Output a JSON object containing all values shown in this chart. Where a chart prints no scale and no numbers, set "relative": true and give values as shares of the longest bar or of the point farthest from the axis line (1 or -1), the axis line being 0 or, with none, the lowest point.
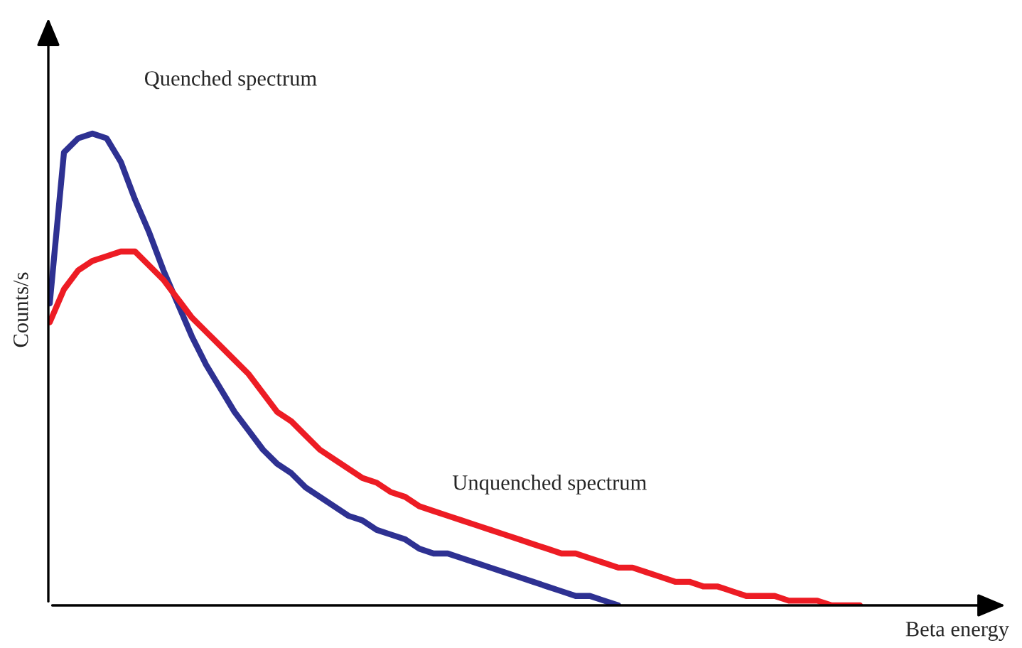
{
  "chart_data": {
    "type": "line",
    "relative": true,
    "xlabel": "Beta energy",
    "ylabel": "Counts/s",
    "legend": false,
    "categories": [
      null,
      null,
      null,
      null,
      null,
      null,
      null,
      null,
      null,
      null,
      null,
      null,
      null,
      null,
      null,
      null,
      null,
      null,
      null,
      null,
      null,
      null,
      null,
      null,
      null,
      null,
      null,
      null,
      null,
      null,
      null,
      null,
      null,
      null,
      null,
      null,
      null,
      null,
      null,
      null,
      null,
      null,
      null,
      null,
      null,
      null,
      null,
      null,
      null,
      null,
      null,
      null,
      null,
      null,
      null,
      null,
      null,
      null
    ],
    "series": [
      {
        "name": "Quenched spectrum",
        "color": "#2e3192",
        "values": [
          0.64,
          0.96,
          0.99,
          1.0,
          0.99,
          0.94,
          0.86,
          0.79,
          0.71,
          0.64,
          0.57,
          0.51,
          0.46,
          0.41,
          0.37,
          0.33,
          0.3,
          0.28,
          0.25,
          0.23,
          0.21,
          0.19,
          0.18,
          0.16,
          0.15,
          0.14,
          0.12,
          0.11,
          0.11,
          0.1,
          0.09,
          0.08,
          0.07,
          0.06,
          0.05,
          0.04,
          0.03,
          0.02,
          0.02,
          0.01,
          0,
          null,
          null,
          null,
          null,
          null,
          null,
          null,
          null,
          null,
          null,
          null,
          null,
          null,
          null,
          null,
          null,
          null
        ]
      },
      {
        "name": "Unquenched spectrum",
        "color": "#ed1c24",
        "values": [
          0.6,
          0.67,
          0.71,
          0.73,
          0.74,
          0.75,
          0.75,
          0.72,
          0.69,
          0.65,
          0.61,
          0.58,
          0.55,
          0.52,
          0.49,
          0.45,
          0.41,
          0.39,
          0.36,
          0.33,
          0.31,
          0.29,
          0.27,
          0.26,
          0.24,
          0.23,
          0.21,
          0.2,
          0.19,
          0.18,
          0.17,
          0.16,
          0.15,
          0.14,
          0.13,
          0.12,
          0.11,
          0.11,
          0.1,
          0.09,
          0.08,
          0.08,
          0.07,
          0.06,
          0.05,
          0.05,
          0.04,
          0.04,
          0.03,
          0.02,
          0.02,
          0.02,
          0.01,
          0.01,
          0.01,
          0.0,
          0,
          0
        ]
      }
    ]
  }
}
